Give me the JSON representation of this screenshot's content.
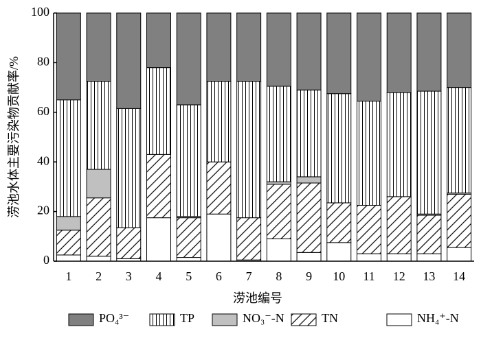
{
  "chart_data": {
    "type": "stacked-bar",
    "xlabel": "涝池编号",
    "ylabel": "涝池水体主要污染物贡献率/%",
    "categories": [
      "1",
      "2",
      "3",
      "4",
      "5",
      "6",
      "7",
      "8",
      "9",
      "10",
      "11",
      "12",
      "13",
      "14"
    ],
    "ylim": [
      0,
      100
    ],
    "yticks": [
      0,
      20,
      40,
      60,
      80,
      100
    ],
    "series": [
      {
        "name": "NH₄⁺-N",
        "color": "#ffffff",
        "hatch": null,
        "values": [
          2.5,
          2,
          1,
          17.5,
          1.5,
          19,
          0.5,
          9,
          3.5,
          7.5,
          3,
          3,
          3,
          5.5
        ]
      },
      {
        "name": "TN",
        "color": "#ffffff",
        "hatch": "diagonal",
        "values": [
          10,
          23.5,
          12.5,
          25.5,
          16,
          21,
          17,
          22,
          28,
          16,
          19.5,
          23,
          15.5,
          21.5
        ]
      },
      {
        "name": "NO₃⁻-N",
        "color": "#c0c0c0",
        "hatch": null,
        "values": [
          5.5,
          11.5,
          0,
          0,
          0.5,
          0,
          0,
          1,
          2.5,
          0,
          0,
          0,
          0.5,
          0.5
        ]
      },
      {
        "name": "TP",
        "color": "#ffffff",
        "hatch": "vertical",
        "values": [
          47,
          35.5,
          48,
          35,
          45,
          32.5,
          55,
          38.5,
          35,
          44,
          42,
          42,
          49.5,
          42.5
        ]
      },
      {
        "name": "PO₄³⁻",
        "color": "#808080",
        "hatch": null,
        "values": [
          35,
          27.5,
          38.5,
          22,
          37,
          27.5,
          27.5,
          29.5,
          31,
          32.5,
          35.5,
          32,
          31.5,
          30
        ]
      }
    ]
  }
}
